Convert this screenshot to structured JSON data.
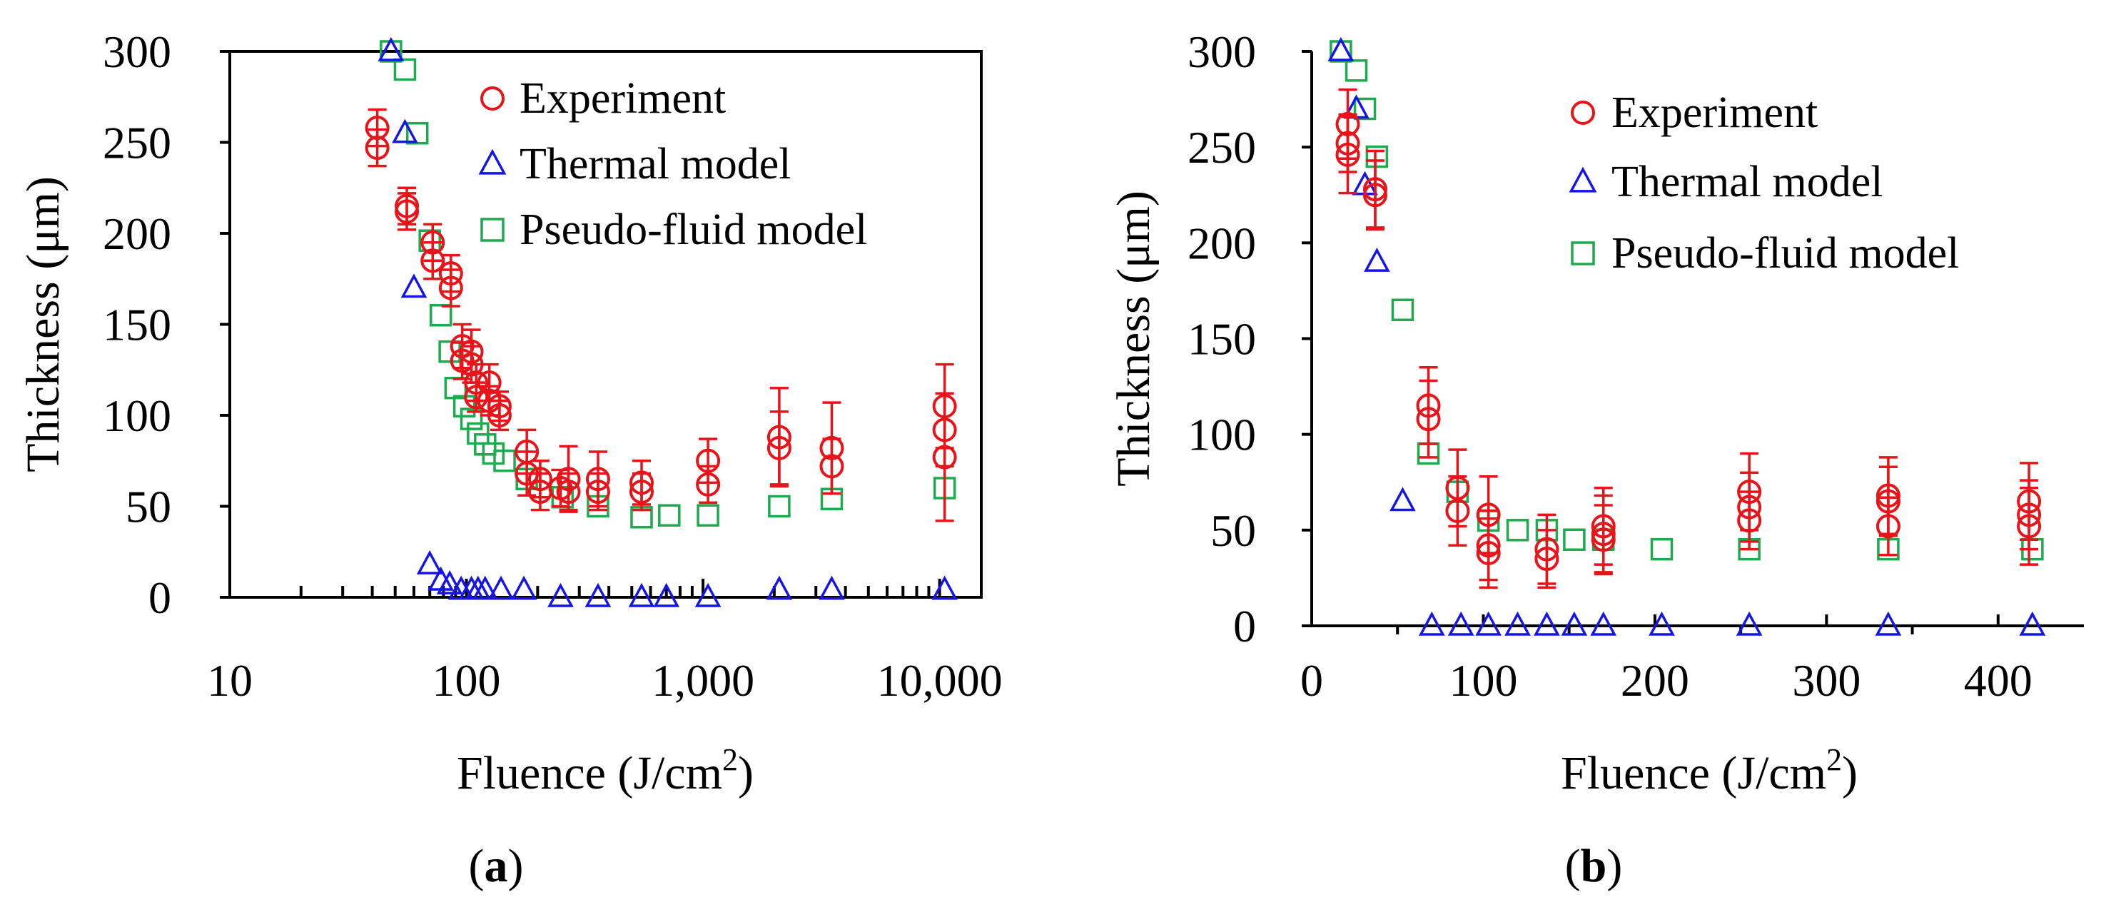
{
  "chart_data": [
    {
      "panel": "(a)",
      "panel_label_bold": "a",
      "type": "scatter",
      "xscale": "log",
      "xlabel": "Fluence (J/cm",
      "xlabel_sup": "2",
      "xlabel_end": ")",
      "ylabel": "Thickness (μm)",
      "xlim": [
        10,
        15000
      ],
      "ylim": [
        0,
        300
      ],
      "xticks": [
        10,
        100,
        1000,
        10000
      ],
      "xtick_labels": [
        "10",
        "100",
        "1,000",
        "10,000"
      ],
      "yticks": [
        0,
        50,
        100,
        150,
        200,
        250,
        300
      ],
      "ytick_labels": [
        "0",
        "50",
        "100",
        "150",
        "200",
        "250",
        "300"
      ],
      "legend_position": "top-right",
      "legend": [
        "Experiment",
        "Thermal model",
        "Pseudo-fluid model"
      ],
      "series": [
        {
          "name": "Experiment",
          "marker": "circle",
          "color": "#e8141a",
          "points": [
            {
              "x": 42,
              "y": 258,
              "err": 10
            },
            {
              "x": 42,
              "y": 247,
              "err": 10
            },
            {
              "x": 56,
              "y": 215,
              "err": 10
            },
            {
              "x": 56,
              "y": 212,
              "err": 10
            },
            {
              "x": 72,
              "y": 195,
              "err": 10
            },
            {
              "x": 72,
              "y": 185,
              "err": 10
            },
            {
              "x": 86,
              "y": 178,
              "err": 10
            },
            {
              "x": 86,
              "y": 170,
              "err": 10
            },
            {
              "x": 96,
              "y": 138,
              "err": 12
            },
            {
              "x": 96,
              "y": 130,
              "err": 10
            },
            {
              "x": 105,
              "y": 135,
              "err": 12
            },
            {
              "x": 105,
              "y": 128,
              "err": 10
            },
            {
              "x": 110,
              "y": 118,
              "err": 10
            },
            {
              "x": 110,
              "y": 110,
              "err": 8
            },
            {
              "x": 125,
              "y": 118,
              "err": 10
            },
            {
              "x": 125,
              "y": 108,
              "err": 8
            },
            {
              "x": 138,
              "y": 105,
              "err": 8
            },
            {
              "x": 138,
              "y": 100,
              "err": 8
            },
            {
              "x": 180,
              "y": 80,
              "err": 12
            },
            {
              "x": 180,
              "y": 68,
              "err": 12
            },
            {
              "x": 205,
              "y": 65,
              "err": 10
            },
            {
              "x": 205,
              "y": 58,
              "err": 10
            },
            {
              "x": 250,
              "y": 60,
              "err": 10
            },
            {
              "x": 270,
              "y": 65,
              "err": 18
            },
            {
              "x": 270,
              "y": 58,
              "err": 10
            },
            {
              "x": 360,
              "y": 65,
              "err": 15
            },
            {
              "x": 360,
              "y": 58,
              "err": 10
            },
            {
              "x": 550,
              "y": 63,
              "err": 12
            },
            {
              "x": 550,
              "y": 58,
              "err": 10
            },
            {
              "x": 1050,
              "y": 75,
              "err": 12
            },
            {
              "x": 1050,
              "y": 62,
              "err": 10
            },
            {
              "x": 2100,
              "y": 88,
              "err": 27
            },
            {
              "x": 2100,
              "y": 82,
              "err": 20
            },
            {
              "x": 3500,
              "y": 82,
              "err": 25
            },
            {
              "x": 3500,
              "y": 72,
              "err": 15
            },
            {
              "x": 10500,
              "y": 105,
              "err": 23
            },
            {
              "x": 10500,
              "y": 92,
              "err": 20
            },
            {
              "x": 10500,
              "y": 77,
              "err": 35
            }
          ]
        },
        {
          "name": "Thermal model",
          "marker": "triangle",
          "color": "#1515e8",
          "points": [
            {
              "x": 48,
              "y": 300
            },
            {
              "x": 55,
              "y": 255
            },
            {
              "x": 60,
              "y": 170
            },
            {
              "x": 70,
              "y": 18
            },
            {
              "x": 78,
              "y": 9
            },
            {
              "x": 85,
              "y": 7
            },
            {
              "x": 95,
              "y": 4
            },
            {
              "x": 105,
              "y": 4
            },
            {
              "x": 112,
              "y": 4
            },
            {
              "x": 120,
              "y": 4
            },
            {
              "x": 140,
              "y": 4
            },
            {
              "x": 175,
              "y": 4
            },
            {
              "x": 250,
              "y": 0
            },
            {
              "x": 360,
              "y": 0
            },
            {
              "x": 550,
              "y": 0
            },
            {
              "x": 700,
              "y": 0
            },
            {
              "x": 1050,
              "y": 0
            },
            {
              "x": 2100,
              "y": 4
            },
            {
              "x": 3500,
              "y": 4
            },
            {
              "x": 10500,
              "y": 4
            }
          ]
        },
        {
          "name": "Pseudo-fluid model",
          "marker": "square",
          "color": "#1eaa4f",
          "points": [
            {
              "x": 48,
              "y": 300
            },
            {
              "x": 55,
              "y": 290
            },
            {
              "x": 62,
              "y": 255
            },
            {
              "x": 70,
              "y": 196
            },
            {
              "x": 78,
              "y": 155
            },
            {
              "x": 85,
              "y": 135
            },
            {
              "x": 90,
              "y": 115
            },
            {
              "x": 98,
              "y": 105
            },
            {
              "x": 105,
              "y": 98
            },
            {
              "x": 112,
              "y": 90
            },
            {
              "x": 120,
              "y": 84
            },
            {
              "x": 130,
              "y": 79
            },
            {
              "x": 145,
              "y": 75
            },
            {
              "x": 180,
              "y": 65
            },
            {
              "x": 255,
              "y": 55
            },
            {
              "x": 360,
              "y": 50
            },
            {
              "x": 550,
              "y": 44
            },
            {
              "x": 720,
              "y": 45
            },
            {
              "x": 1050,
              "y": 45
            },
            {
              "x": 2100,
              "y": 50
            },
            {
              "x": 3500,
              "y": 54
            },
            {
              "x": 10500,
              "y": 60
            }
          ]
        }
      ]
    },
    {
      "panel": "(b)",
      "panel_label_bold": "b",
      "type": "scatter",
      "xscale": "linear",
      "xlabel": "Fluence (J/cm",
      "xlabel_sup": "2",
      "xlabel_end": ")",
      "ylabel": "Thickness (μm)",
      "xlim": [
        0,
        450
      ],
      "ylim": [
        0,
        300
      ],
      "xticks": [
        0,
        100,
        200,
        300,
        400
      ],
      "xtick_labels": [
        "0",
        "100",
        "200",
        "300",
        "400"
      ],
      "yticks": [
        0,
        50,
        100,
        150,
        200,
        250,
        300
      ],
      "ytick_labels": [
        "0",
        "50",
        "100",
        "150",
        "200",
        "250",
        "300"
      ],
      "legend_position": "top-right",
      "legend": [
        "Experiment",
        "Thermal model",
        "Pseudo-fluid model"
      ],
      "series": [
        {
          "name": "Experiment",
          "marker": "circle",
          "color": "#e8141a",
          "points": [
            {
              "x": 21,
              "y": 262,
              "err": 18
            },
            {
              "x": 21,
              "y": 252,
              "err": 15
            },
            {
              "x": 21,
              "y": 246,
              "err": 20
            },
            {
              "x": 37,
              "y": 228,
              "err": 20
            },
            {
              "x": 37,
              "y": 225,
              "err": 18
            },
            {
              "x": 68,
              "y": 115,
              "err": 20
            },
            {
              "x": 68,
              "y": 108,
              "err": 20
            },
            {
              "x": 85,
              "y": 72,
              "err": 20
            },
            {
              "x": 85,
              "y": 60,
              "err": 18
            },
            {
              "x": 103,
              "y": 58,
              "err": 20
            },
            {
              "x": 103,
              "y": 42,
              "err": 18
            },
            {
              "x": 103,
              "y": 38,
              "err": 18
            },
            {
              "x": 137,
              "y": 40,
              "err": 18
            },
            {
              "x": 137,
              "y": 35,
              "err": 15
            },
            {
              "x": 170,
              "y": 52,
              "err": 20
            },
            {
              "x": 170,
              "y": 48,
              "err": 20
            },
            {
              "x": 170,
              "y": 45,
              "err": 18
            },
            {
              "x": 255,
              "y": 70,
              "err": 20
            },
            {
              "x": 255,
              "y": 62,
              "err": 18
            },
            {
              "x": 255,
              "y": 55,
              "err": 15
            },
            {
              "x": 336,
              "y": 68,
              "err": 20
            },
            {
              "x": 336,
              "y": 65,
              "err": 18
            },
            {
              "x": 336,
              "y": 52,
              "err": 15
            },
            {
              "x": 418,
              "y": 65,
              "err": 20
            },
            {
              "x": 418,
              "y": 58,
              "err": 18
            },
            {
              "x": 418,
              "y": 52,
              "err": 20
            }
          ]
        },
        {
          "name": "Thermal model",
          "marker": "triangle",
          "color": "#1515e8",
          "points": [
            {
              "x": 17,
              "y": 300
            },
            {
              "x": 26,
              "y": 270
            },
            {
              "x": 31,
              "y": 230
            },
            {
              "x": 38,
              "y": 190
            },
            {
              "x": 53,
              "y": 65
            },
            {
              "x": 70,
              "y": 0
            },
            {
              "x": 87,
              "y": 0
            },
            {
              "x": 103,
              "y": 0
            },
            {
              "x": 120,
              "y": 0
            },
            {
              "x": 137,
              "y": 0
            },
            {
              "x": 153,
              "y": 0
            },
            {
              "x": 170,
              "y": 0
            },
            {
              "x": 204,
              "y": 0
            },
            {
              "x": 255,
              "y": 0
            },
            {
              "x": 336,
              "y": 0
            },
            {
              "x": 420,
              "y": 0
            }
          ]
        },
        {
          "name": "Pseudo-fluid model",
          "marker": "square",
          "color": "#1eaa4f",
          "points": [
            {
              "x": 17,
              "y": 300
            },
            {
              "x": 26,
              "y": 290
            },
            {
              "x": 31,
              "y": 270
            },
            {
              "x": 38,
              "y": 245
            },
            {
              "x": 53,
              "y": 165
            },
            {
              "x": 68,
              "y": 90
            },
            {
              "x": 85,
              "y": 70
            },
            {
              "x": 103,
              "y": 55
            },
            {
              "x": 120,
              "y": 50
            },
            {
              "x": 137,
              "y": 50
            },
            {
              "x": 153,
              "y": 45
            },
            {
              "x": 170,
              "y": 45
            },
            {
              "x": 204,
              "y": 40
            },
            {
              "x": 255,
              "y": 40
            },
            {
              "x": 336,
              "y": 40
            },
            {
              "x": 420,
              "y": 40
            }
          ]
        }
      ]
    }
  ]
}
